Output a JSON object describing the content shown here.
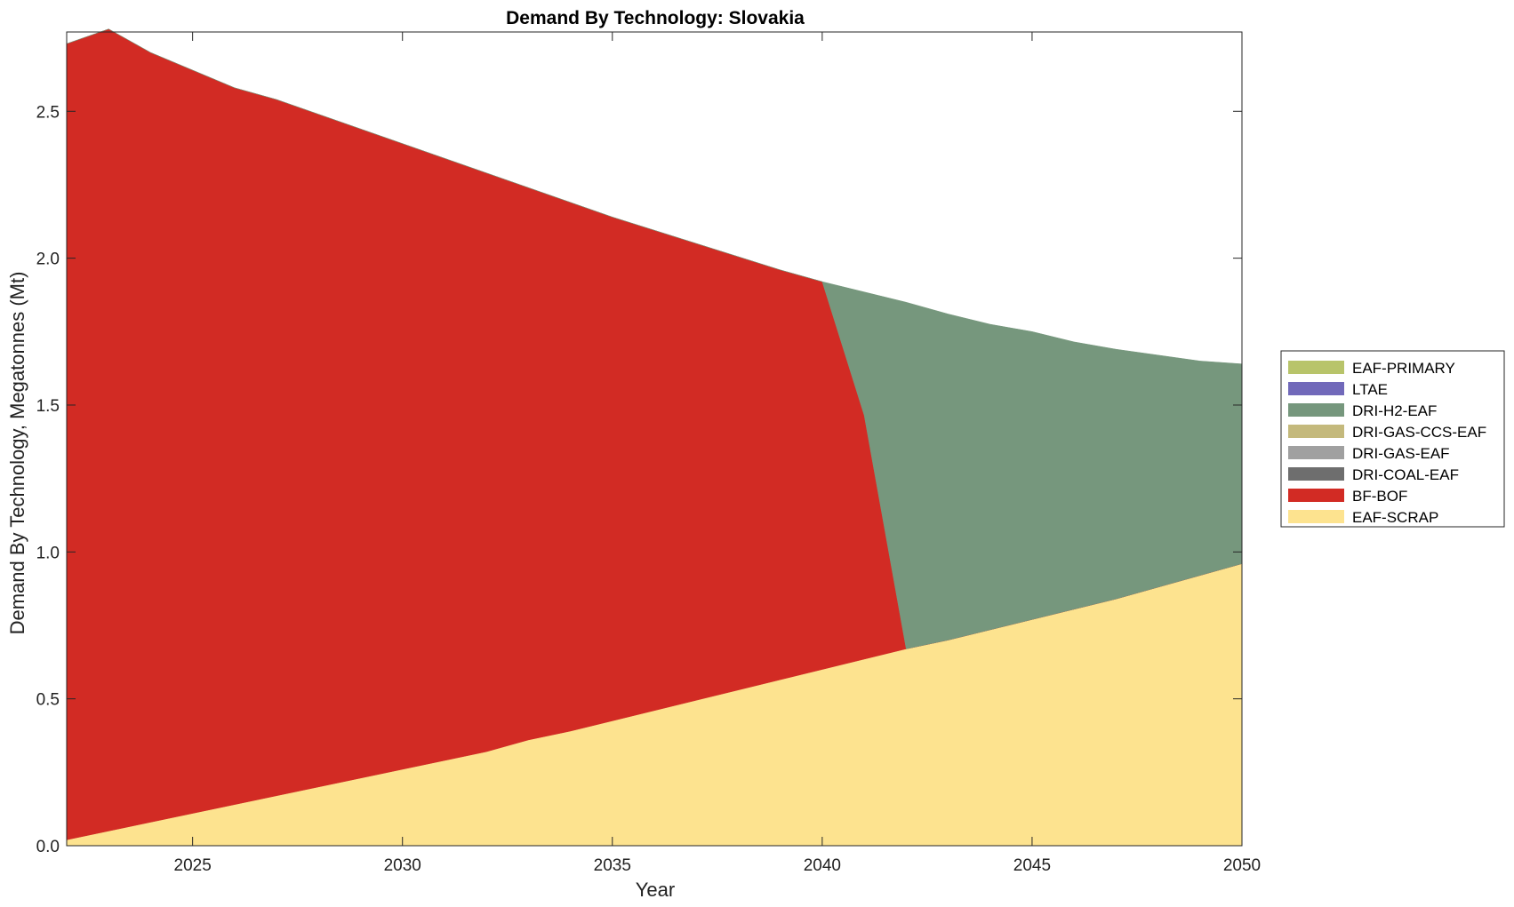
{
  "chart_data": {
    "type": "area",
    "title": "Demand By Technology: Slovakia",
    "xlabel": "Year",
    "ylabel": "Demand By Technology, Megatonnes (Mt)",
    "xlim": [
      2022,
      2050
    ],
    "ylim": [
      0,
      2.77
    ],
    "xticks": [
      2025,
      2030,
      2035,
      2040,
      2045,
      2050
    ],
    "yticks": [
      0,
      0.5,
      1,
      1.5,
      2,
      2.5
    ],
    "ytick_labels": [
      "0.0",
      "0.5",
      "1.0",
      "1.5",
      "2.0",
      "2.5"
    ],
    "grid": false,
    "stacked": true,
    "legend_position": "right",
    "x": [
      2022,
      2023,
      2024,
      2025,
      2026,
      2027,
      2028,
      2029,
      2030,
      2031,
      2032,
      2033,
      2034,
      2035,
      2036,
      2037,
      2038,
      2039,
      2040,
      2041,
      2042,
      2043,
      2044,
      2045,
      2046,
      2047,
      2048,
      2049,
      2050
    ],
    "series": [
      {
        "name": "EAF-SCRAP",
        "color": "#FDE38F",
        "values": [
          0.02,
          0.05,
          0.08,
          0.11,
          0.14,
          0.17,
          0.2,
          0.23,
          0.26,
          0.29,
          0.32,
          0.36,
          0.39,
          0.425,
          0.46,
          0.495,
          0.53,
          0.565,
          0.6,
          0.635,
          0.67,
          0.7,
          0.735,
          0.77,
          0.805,
          0.84,
          0.88,
          0.92,
          0.96
        ]
      },
      {
        "name": "BF-BOF",
        "color": "#D22B24",
        "values": [
          2.71,
          2.73,
          2.62,
          2.53,
          2.44,
          2.37,
          2.29,
          2.21,
          2.13,
          2.05,
          1.97,
          1.88,
          1.8,
          1.715,
          1.635,
          1.555,
          1.475,
          1.395,
          1.32,
          0.83,
          0,
          0,
          0,
          0,
          0,
          0,
          0,
          0,
          0
        ]
      },
      {
        "name": "DRI-COAL-EAF",
        "color": "#6E6E6E",
        "values": [
          0,
          0,
          0,
          0,
          0,
          0,
          0,
          0,
          0,
          0,
          0,
          0,
          0,
          0,
          0,
          0,
          0,
          0,
          0,
          0,
          0,
          0,
          0,
          0,
          0,
          0,
          0,
          0,
          0
        ]
      },
      {
        "name": "DRI-GAS-EAF",
        "color": "#A0A0A0",
        "values": [
          0,
          0,
          0,
          0,
          0,
          0,
          0,
          0,
          0,
          0,
          0,
          0,
          0,
          0,
          0,
          0,
          0,
          0,
          0,
          0,
          0,
          0,
          0,
          0,
          0,
          0,
          0,
          0,
          0
        ]
      },
      {
        "name": "DRI-GAS-CCS-EAF",
        "color": "#C4B97C",
        "values": [
          0,
          0,
          0,
          0,
          0,
          0,
          0,
          0,
          0,
          0,
          0,
          0,
          0,
          0,
          0,
          0,
          0,
          0,
          0,
          0,
          0,
          0,
          0,
          0,
          0,
          0,
          0,
          0,
          0
        ]
      },
      {
        "name": "DRI-H2-EAF",
        "color": "#76977D",
        "values": [
          0,
          0,
          0,
          0,
          0,
          0,
          0,
          0,
          0,
          0,
          0,
          0,
          0,
          0,
          0,
          0,
          0,
          0,
          0,
          0.42,
          1.18,
          1.11,
          1.04,
          0.98,
          0.91,
          0.85,
          0.79,
          0.73,
          0.68
        ]
      },
      {
        "name": "LTAE",
        "color": "#7169BA",
        "values": [
          0,
          0,
          0,
          0,
          0,
          0,
          0,
          0,
          0,
          0,
          0,
          0,
          0,
          0,
          0,
          0,
          0,
          0,
          0,
          0,
          0,
          0,
          0,
          0,
          0,
          0,
          0,
          0,
          0
        ]
      },
      {
        "name": "EAF-PRIMARY",
        "color": "#B8C46A",
        "values": [
          0,
          0,
          0,
          0,
          0,
          0,
          0,
          0,
          0,
          0,
          0,
          0,
          0,
          0,
          0,
          0,
          0,
          0,
          0,
          0,
          0,
          0,
          0,
          0,
          0,
          0,
          0,
          0,
          0
        ]
      }
    ],
    "legend": [
      "EAF-PRIMARY",
      "LTAE",
      "DRI-H2-EAF",
      "DRI-GAS-CCS-EAF",
      "DRI-GAS-EAF",
      "DRI-COAL-EAF",
      "BF-BOF",
      "EAF-SCRAP"
    ]
  }
}
